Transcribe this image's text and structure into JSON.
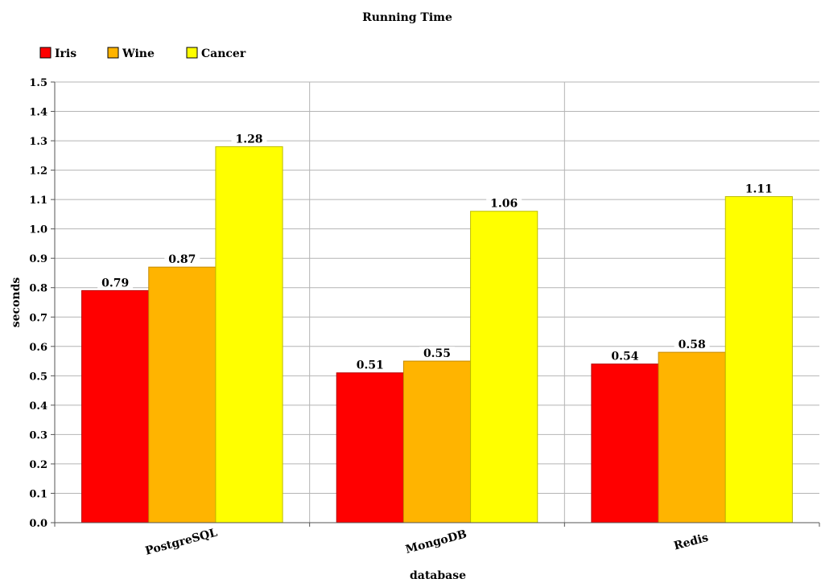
{
  "chart_data": {
    "type": "bar",
    "title": "Running Time",
    "xlabel": "database",
    "ylabel": "seconds",
    "categories": [
      "PostgreSQL",
      "MongoDB",
      "Redis"
    ],
    "series": [
      {
        "name": "Iris",
        "values": [
          0.79,
          0.51,
          0.54
        ],
        "color": "#ff0000",
        "stroke": "#b80000"
      },
      {
        "name": "Wine",
        "values": [
          0.87,
          0.55,
          0.58
        ],
        "color": "#ffb400",
        "stroke": "#c48a00"
      },
      {
        "name": "Cancer",
        "values": [
          1.28,
          1.06,
          1.11
        ],
        "color": "#ffff00",
        "stroke": "#bdbd00"
      }
    ],
    "data_labels": [
      [
        "0.79",
        "0.51",
        "0.54"
      ],
      [
        "0.87",
        "0.55",
        "0.58"
      ],
      [
        "1.28",
        "1.06",
        "1.11"
      ]
    ],
    "ylim": [
      0,
      1.5
    ],
    "yticks": [
      "0.0",
      "0.1",
      "0.2",
      "0.3",
      "0.4",
      "0.5",
      "0.6",
      "0.7",
      "0.8",
      "0.9",
      "1.0",
      "1.1",
      "1.2",
      "1.3",
      "1.4",
      "1.5"
    ],
    "grid": true,
    "legend_position": "top-left"
  }
}
